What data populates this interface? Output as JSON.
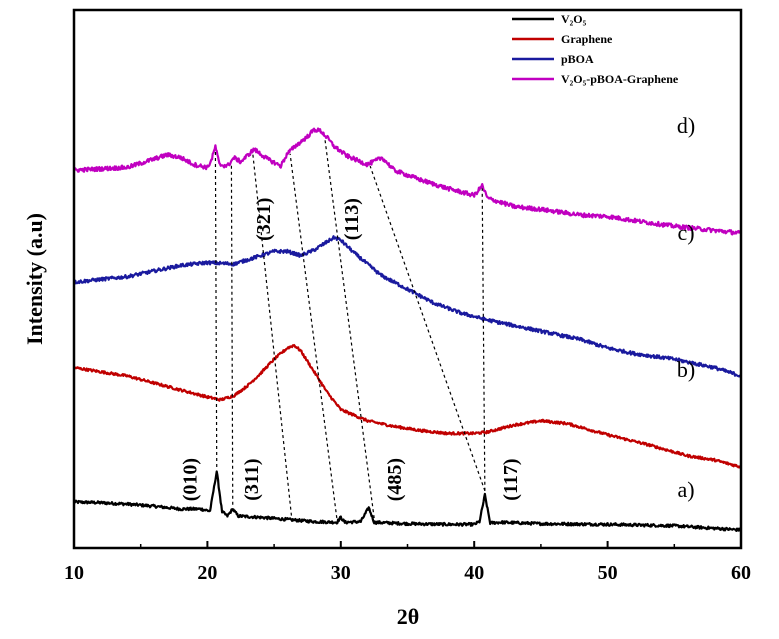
{
  "chart_data": {
    "type": "line",
    "title": "",
    "xlabel": "2θ",
    "ylabel": "Intensity (a.u)",
    "xlim": [
      10,
      60
    ],
    "xticks": [
      10,
      20,
      30,
      40,
      50,
      60
    ],
    "colors": {
      "V2O5": "#000000",
      "Graphene": "#c00000",
      "pBOA": "#1a1a9e",
      "composite": "#c000c0"
    },
    "legend": {
      "position": "top-right",
      "entries": [
        {
          "key": "V2O5",
          "label": "V₂O₅"
        },
        {
          "key": "Graphene",
          "label": "Graphene"
        },
        {
          "key": "pBOA",
          "label": "pBOA"
        },
        {
          "key": "composite",
          "label": "V₂O₅-pBOA-Graphene"
        }
      ]
    },
    "curve_labels": [
      {
        "key": "composite",
        "label": "d)"
      },
      {
        "key": "pBOA",
        "label": "c)"
      },
      {
        "key": "Graphene",
        "label": "b)"
      },
      {
        "key": "V2O5",
        "label": "a)"
      }
    ],
    "series": [
      {
        "key": "V2O5",
        "name": "V₂O₅",
        "noise": 0.1,
        "points": [
          [
            10,
            2.0
          ],
          [
            12,
            1.95
          ],
          [
            14,
            1.85
          ],
          [
            16,
            1.7
          ],
          [
            18,
            1.5
          ],
          [
            19.5,
            1.5
          ],
          [
            20.2,
            1.35
          ],
          [
            20.7,
            4.2
          ],
          [
            21.1,
            1.3
          ],
          [
            21.5,
            1.0
          ],
          [
            21.9,
            1.5
          ],
          [
            22.3,
            1.0
          ],
          [
            24,
            0.9
          ],
          [
            26,
            0.75
          ],
          [
            28,
            0.6
          ],
          [
            29.7,
            0.55
          ],
          [
            30,
            0.9
          ],
          [
            30.3,
            0.55
          ],
          [
            31.5,
            0.6
          ],
          [
            32.1,
            1.6
          ],
          [
            32.5,
            0.55
          ],
          [
            35,
            0.45
          ],
          [
            38,
            0.4
          ],
          [
            40,
            0.4
          ],
          [
            40.4,
            0.6
          ],
          [
            40.8,
            2.5
          ],
          [
            41.2,
            0.5
          ],
          [
            42,
            0.55
          ],
          [
            45,
            0.45
          ],
          [
            50,
            0.4
          ],
          [
            55,
            0.3
          ],
          [
            60,
            0.0
          ]
        ]
      },
      {
        "key": "Graphene",
        "name": "Graphene",
        "noise": 0.09,
        "points": [
          [
            10,
            11.6
          ],
          [
            12,
            11.3
          ],
          [
            14,
            11.0
          ],
          [
            16,
            10.5
          ],
          [
            18,
            10.0
          ],
          [
            20,
            9.5
          ],
          [
            21,
            9.3
          ],
          [
            22,
            9.6
          ],
          [
            23,
            10.3
          ],
          [
            24,
            11.2
          ],
          [
            25,
            12.2
          ],
          [
            26,
            13.0
          ],
          [
            26.5,
            13.2
          ],
          [
            27,
            12.8
          ],
          [
            28,
            11.3
          ],
          [
            29,
            9.8
          ],
          [
            30,
            8.6
          ],
          [
            32,
            7.8
          ],
          [
            34,
            7.4
          ],
          [
            36,
            7.1
          ],
          [
            38,
            6.9
          ],
          [
            40,
            6.9
          ],
          [
            41,
            7.0
          ],
          [
            43,
            7.5
          ],
          [
            45,
            7.8
          ],
          [
            47,
            7.6
          ],
          [
            50,
            6.8
          ],
          [
            53,
            6.1
          ],
          [
            56,
            5.3
          ],
          [
            58,
            5.0
          ],
          [
            60,
            4.5
          ]
        ]
      },
      {
        "key": "pBOA",
        "name": "pBOA",
        "noise": 0.12,
        "points": [
          [
            10,
            17.7
          ],
          [
            12,
            17.9
          ],
          [
            14,
            18.1
          ],
          [
            16,
            18.5
          ],
          [
            18,
            18.9
          ],
          [
            20,
            19.1
          ],
          [
            22,
            19.0
          ],
          [
            24,
            19.6
          ],
          [
            25,
            19.9
          ],
          [
            26,
            19.9
          ],
          [
            27,
            19.6
          ],
          [
            28,
            20.0
          ],
          [
            29,
            20.6
          ],
          [
            29.5,
            20.9
          ],
          [
            30,
            20.7
          ],
          [
            31,
            19.8
          ],
          [
            32,
            19.0
          ],
          [
            33,
            18.2
          ],
          [
            35,
            17.2
          ],
          [
            37,
            16.2
          ],
          [
            39,
            15.5
          ],
          [
            41,
            15.0
          ],
          [
            43,
            14.6
          ],
          [
            45,
            14.2
          ],
          [
            48,
            13.6
          ],
          [
            50,
            13.0
          ],
          [
            52,
            12.6
          ],
          [
            55,
            12.2
          ],
          [
            58,
            11.6
          ],
          [
            60,
            11.0
          ]
        ]
      },
      {
        "key": "composite",
        "name": "V₂O₅-pBOA-Graphene",
        "noise": 0.15,
        "points": [
          [
            10,
            25.7
          ],
          [
            12,
            25.8
          ],
          [
            14,
            25.9
          ],
          [
            16,
            26.5
          ],
          [
            17,
            26.8
          ],
          [
            18,
            26.6
          ],
          [
            19,
            26.1
          ],
          [
            20,
            25.9
          ],
          [
            20.3,
            26.4
          ],
          [
            20.6,
            27.4
          ],
          [
            20.9,
            26.1
          ],
          [
            21.5,
            26.0
          ],
          [
            22,
            26.6
          ],
          [
            22.5,
            26.3
          ],
          [
            23.5,
            27.2
          ],
          [
            24.5,
            26.5
          ],
          [
            25.5,
            26.0
          ],
          [
            26,
            26.9
          ],
          [
            26.7,
            27.5
          ],
          [
            27.5,
            28.1
          ],
          [
            28,
            28.6
          ],
          [
            28.5,
            28.5
          ],
          [
            29,
            28.0
          ],
          [
            29.5,
            27.4
          ],
          [
            30.5,
            26.7
          ],
          [
            32,
            26.1
          ],
          [
            33.1,
            26.6
          ],
          [
            34,
            25.7
          ],
          [
            36,
            25.0
          ],
          [
            38,
            24.4
          ],
          [
            40,
            23.9
          ],
          [
            40.6,
            24.6
          ],
          [
            41,
            23.7
          ],
          [
            43,
            23.1
          ],
          [
            45,
            22.9
          ],
          [
            48,
            22.5
          ],
          [
            50,
            22.4
          ],
          [
            52,
            22.1
          ],
          [
            55,
            21.7
          ],
          [
            58,
            21.4
          ],
          [
            60,
            21.2
          ]
        ]
      }
    ],
    "peak_lines": [
      {
        "x_bottom": 20.7,
        "x_top": 20.6
      },
      {
        "x_bottom": 21.9,
        "x_top": 21.8
      },
      {
        "x_bottom": 26.3,
        "x_top": 23.4
      },
      {
        "x_bottom": 29.7,
        "x_top": 26.2
      },
      {
        "x_bottom": 32.5,
        "x_top": 28.8
      },
      {
        "x_bottom": 40.8,
        "x_top": 32.2
      },
      {
        "x_bottom": 40.8,
        "x_top": 40.6
      }
    ],
    "peak_labels": [
      {
        "label": "(010)",
        "x": 19.2,
        "y": 3.6
      },
      {
        "label": "(311)",
        "x": 23.8,
        "y": 3.6
      },
      {
        "label": "(485)",
        "x": 34.5,
        "y": 3.6
      },
      {
        "label": "(117)",
        "x": 43.2,
        "y": 3.6
      },
      {
        "label": "(321)",
        "x": 24.7,
        "y": 22.2
      },
      {
        "label": "(113)",
        "x": 31.3,
        "y": 22.2
      }
    ]
  }
}
